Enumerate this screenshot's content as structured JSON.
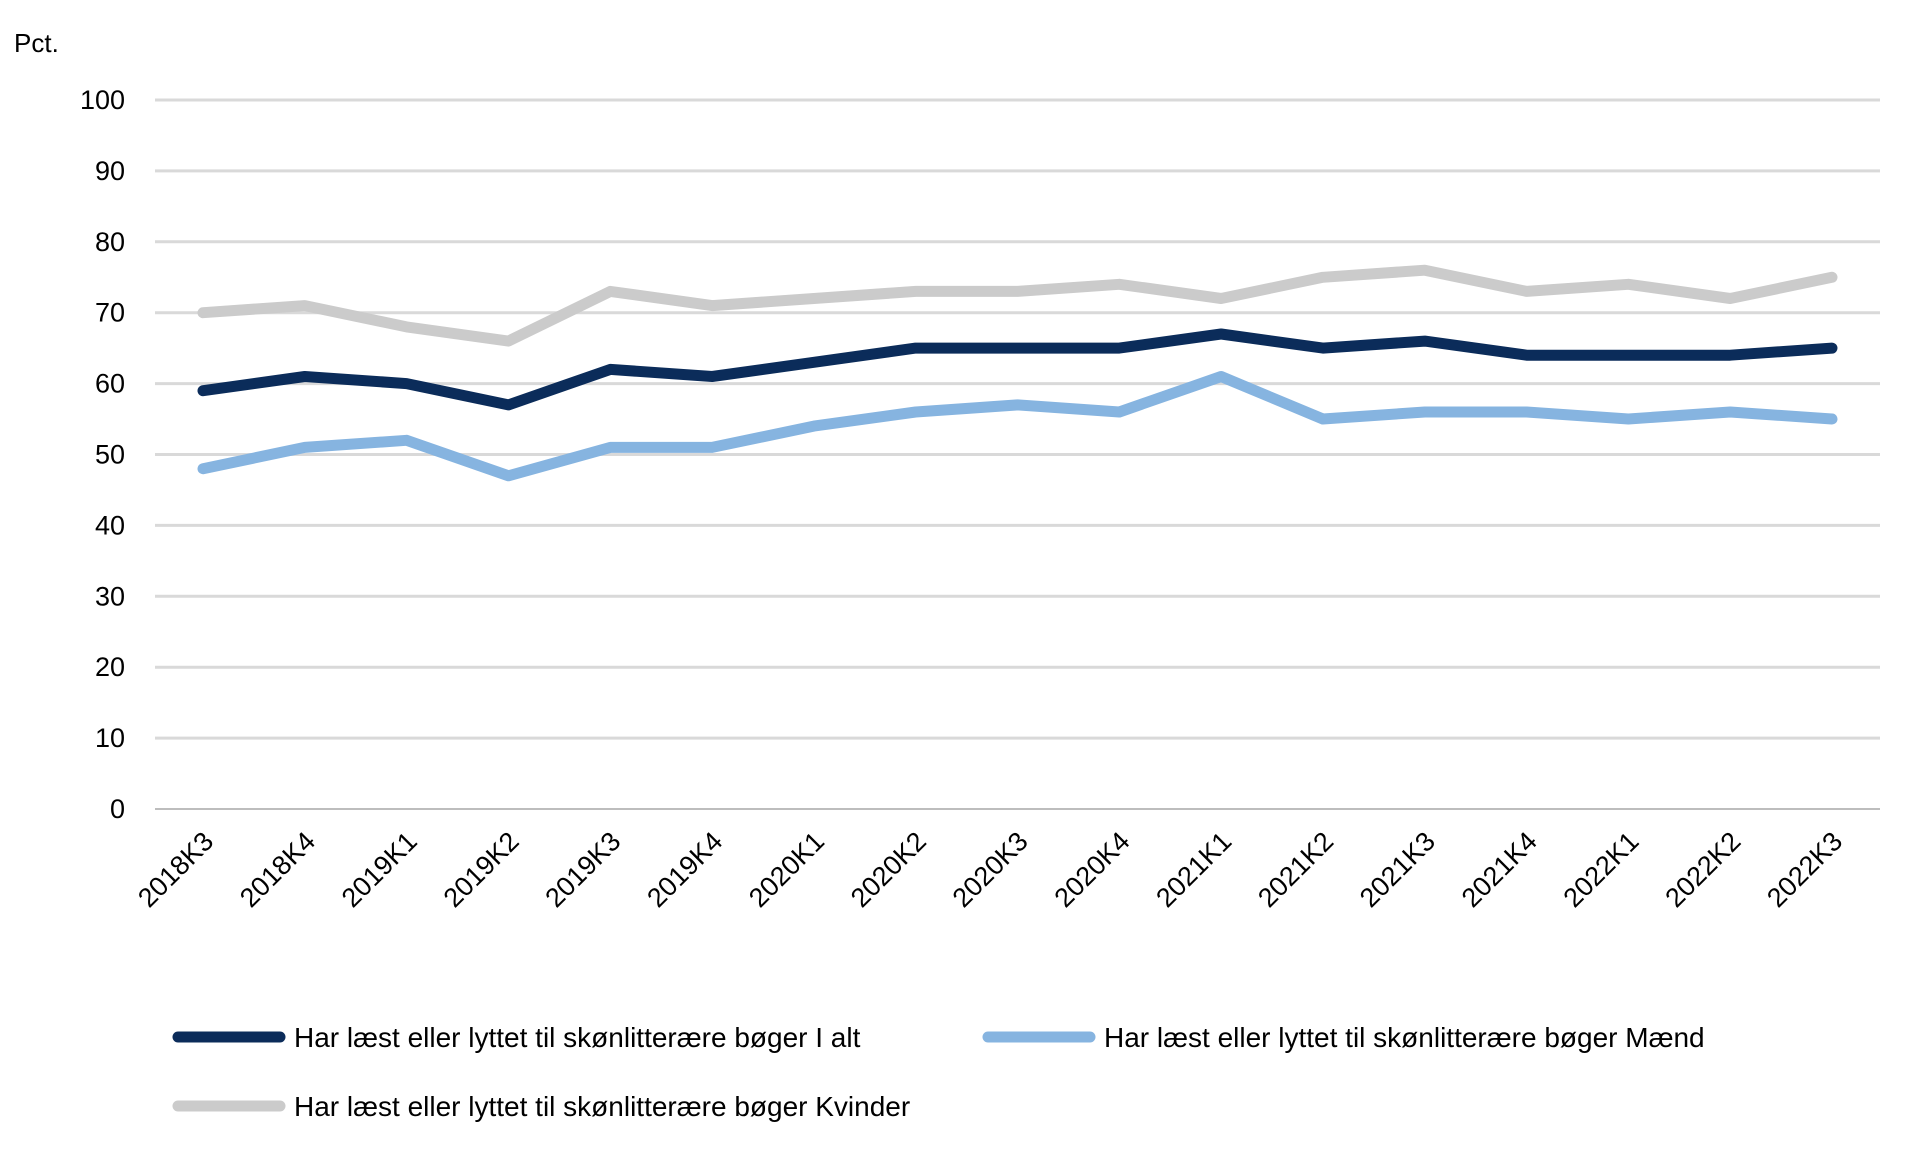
{
  "chart_data": {
    "type": "line",
    "title": "",
    "xlabel": "",
    "ylabel": "Pct.",
    "ylim": [
      0,
      100
    ],
    "yticks": [
      0,
      10,
      20,
      30,
      40,
      50,
      60,
      70,
      80,
      90,
      100
    ],
    "grid": true,
    "legend_position": "bottom",
    "categories": [
      "2018K3",
      "2018K4",
      "2019K1",
      "2019K2",
      "2019K3",
      "2019K4",
      "2020K1",
      "2020K2",
      "2020K3",
      "2020K4",
      "2021K1",
      "2021K2",
      "2021K3",
      "2021K4",
      "2022K1",
      "2022K2",
      "2022K3"
    ],
    "series": [
      {
        "name": "Har læst eller lyttet til skønlitterære bøger I alt",
        "color": "#0b2c5a",
        "values": [
          59,
          61,
          60,
          57,
          62,
          61,
          63,
          65,
          65,
          65,
          67,
          65,
          66,
          64,
          64,
          64,
          65
        ]
      },
      {
        "name": "Har læst eller lyttet til skønlitterære bøger Mænd",
        "color": "#86b4e0",
        "values": [
          48,
          51,
          52,
          47,
          51,
          51,
          54,
          56,
          57,
          56,
          61,
          55,
          56,
          56,
          55,
          56,
          55
        ]
      },
      {
        "name": "Har læst eller lyttet til skønlitterære bøger Kvinder",
        "color": "#cbcbcb",
        "values": [
          70,
          71,
          68,
          66,
          73,
          71,
          72,
          73,
          73,
          74,
          72,
          75,
          76,
          73,
          74,
          72,
          75
        ]
      }
    ]
  }
}
